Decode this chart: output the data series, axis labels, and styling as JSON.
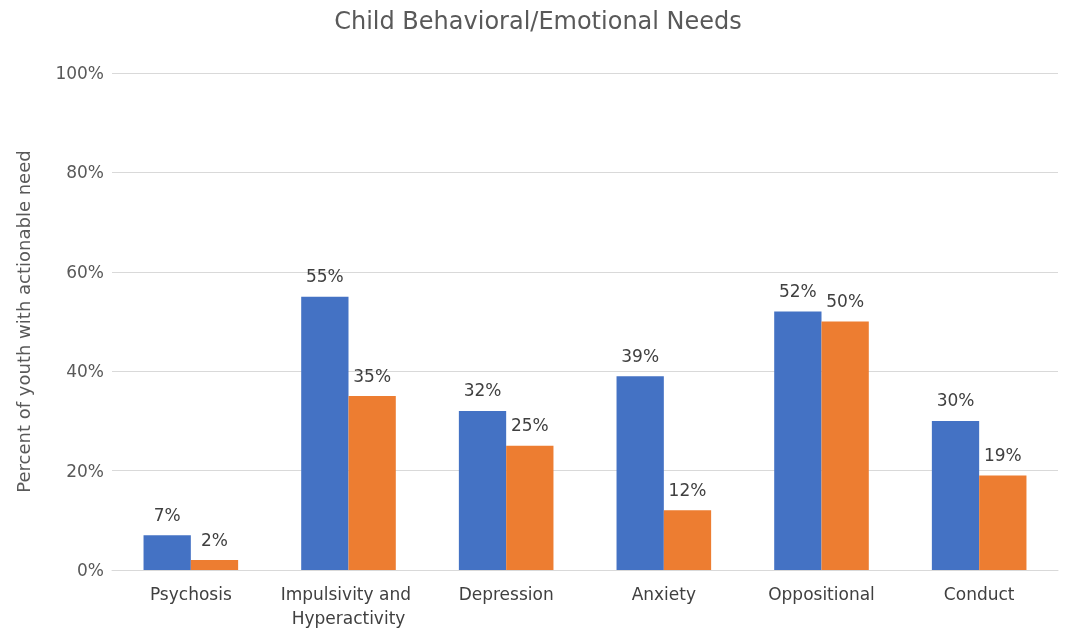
{
  "chart_data": {
    "type": "bar",
    "title": "Child Behavioral/Emotional Needs",
    "ylabel": "Percent of youth with actionable need",
    "categories": [
      "Psychosis",
      "Impulsivity and Hyperactivity",
      "Depression",
      "Anxiety",
      "Oppositional",
      "Conduct"
    ],
    "series": [
      {
        "color": "#4472c4",
        "values": [
          7,
          55,
          32,
          39,
          52,
          30
        ],
        "value_labels": [
          "7%",
          "55%",
          "32%",
          "39%",
          "52%",
          "30%"
        ]
      },
      {
        "color": "#ed7d31",
        "values": [
          2,
          35,
          25,
          12,
          50,
          19
        ],
        "value_labels": [
          "2%",
          "35%",
          "25%",
          "12%",
          "50%",
          "19%"
        ]
      }
    ],
    "ylim": [
      0,
      100
    ],
    "yticks": [
      {
        "value": 0,
        "label": "0%"
      },
      {
        "value": 20,
        "label": "20%"
      },
      {
        "value": 40,
        "label": "40%"
      },
      {
        "value": 60,
        "label": "60%"
      },
      {
        "value": 80,
        "label": "80%"
      },
      {
        "value": 100,
        "label": "100%"
      }
    ],
    "grid": "y"
  }
}
